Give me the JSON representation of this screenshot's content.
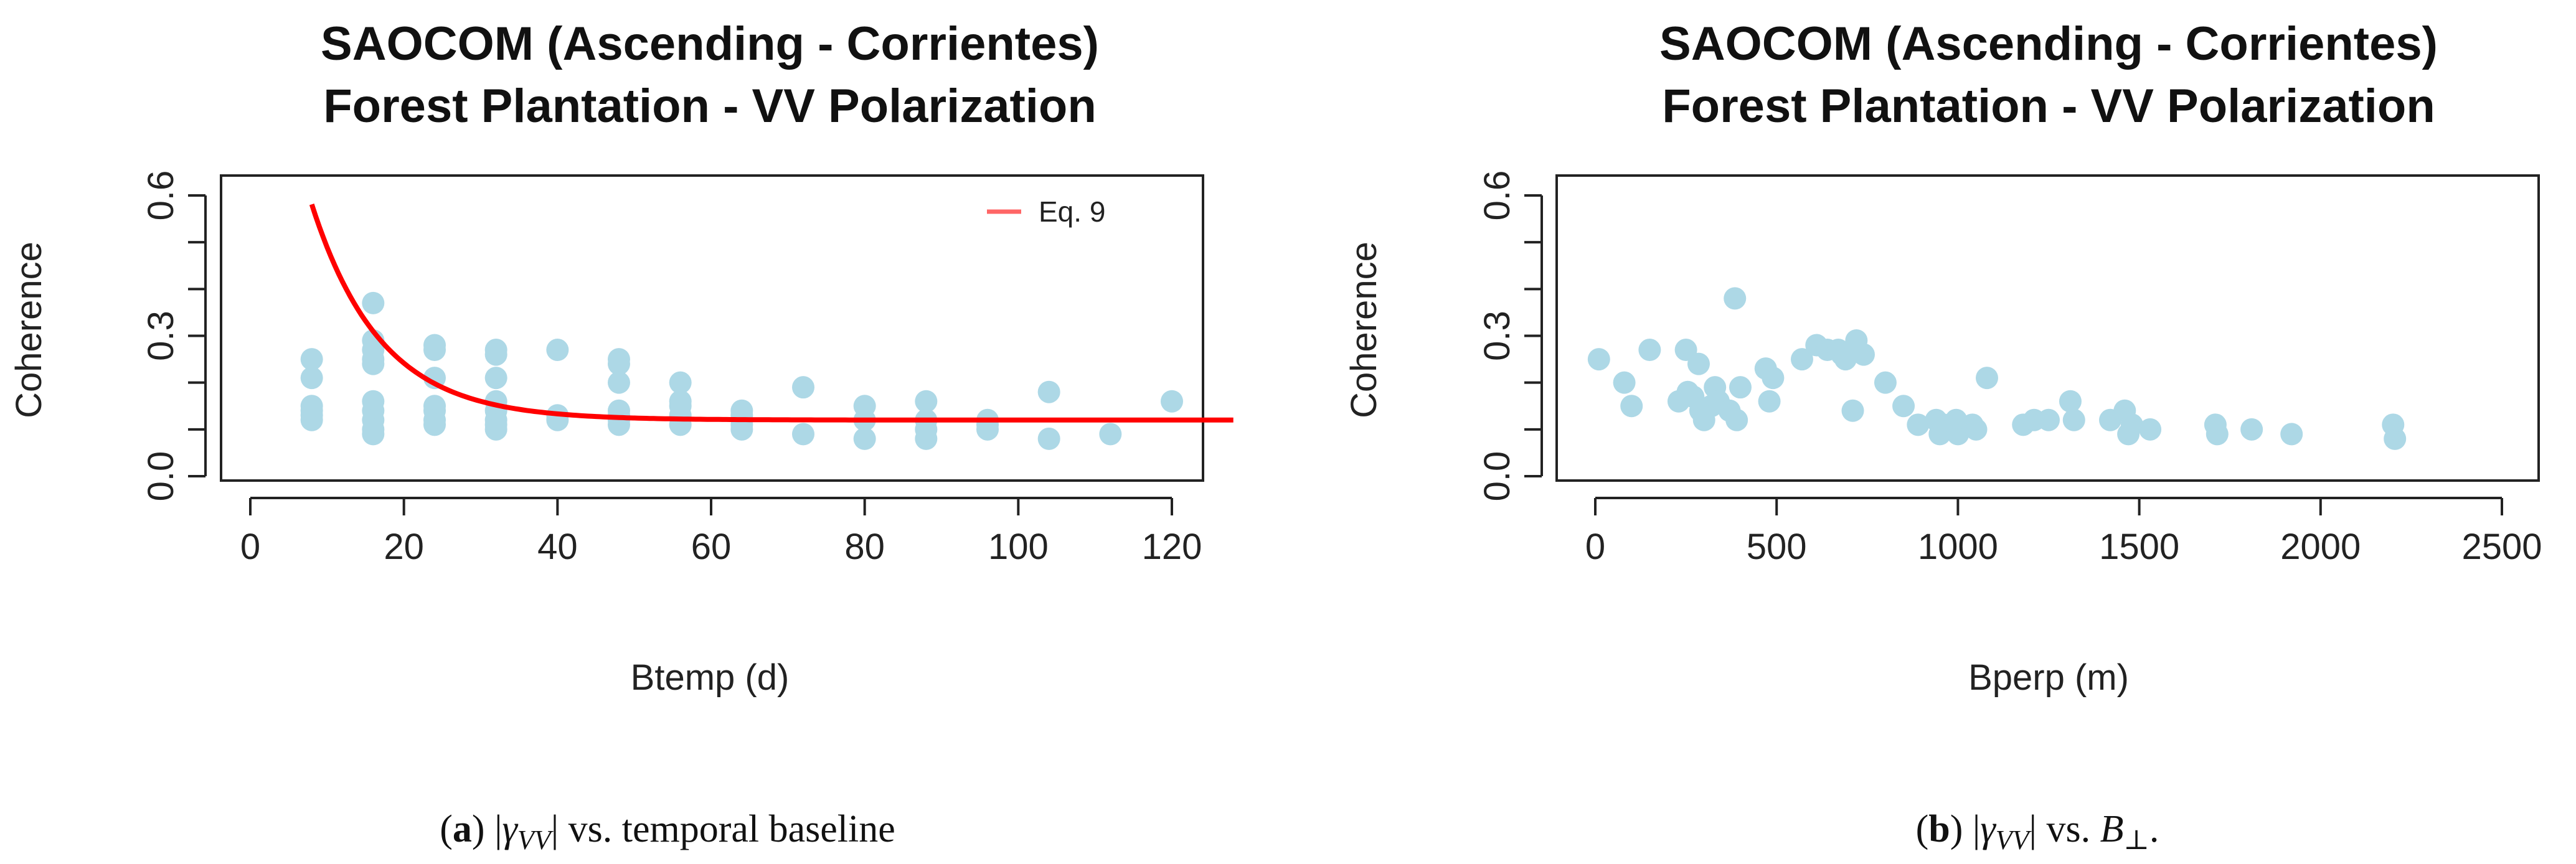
{
  "chart_data": [
    {
      "type": "scatter",
      "id": "a",
      "title": "SAOCOM (Ascending - Corrientes)",
      "subtitle": "Forest Plantation - VV Polarization",
      "xlabel": "Btemp (d)",
      "ylabel": "Coherence",
      "xlim": [
        0,
        128
      ],
      "ylim": [
        0,
        0.6
      ],
      "xticks": [
        0,
        20,
        40,
        60,
        80,
        100,
        120
      ],
      "yticks": [
        0.0,
        0.3,
        0.6
      ],
      "ytick_labels": [
        "0.0",
        "0.3",
        "0.6"
      ],
      "point_color": "#add8e6",
      "line_color": "#ff0000",
      "legend": {
        "label": "Eq. 9",
        "position": "top-right"
      },
      "curve": {
        "name": "Eq. 9",
        "x_start": 8,
        "x_end": 128,
        "gamma_inf": 0.12,
        "amplitude": 0.4611,
        "tau": 9.0,
        "x0": 8
      },
      "points": [
        [
          8,
          0.25
        ],
        [
          8,
          0.21
        ],
        [
          8,
          0.15
        ],
        [
          8,
          0.14
        ],
        [
          8,
          0.13
        ],
        [
          8,
          0.12
        ],
        [
          16,
          0.37
        ],
        [
          16,
          0.29
        ],
        [
          16,
          0.27
        ],
        [
          16,
          0.25
        ],
        [
          16,
          0.24
        ],
        [
          16,
          0.16
        ],
        [
          16,
          0.14
        ],
        [
          16,
          0.12
        ],
        [
          16,
          0.1
        ],
        [
          16,
          0.09
        ],
        [
          24,
          0.28
        ],
        [
          24,
          0.27
        ],
        [
          24,
          0.21
        ],
        [
          24,
          0.15
        ],
        [
          24,
          0.14
        ],
        [
          24,
          0.12
        ],
        [
          24,
          0.11
        ],
        [
          32,
          0.27
        ],
        [
          32,
          0.26
        ],
        [
          32,
          0.21
        ],
        [
          32,
          0.16
        ],
        [
          32,
          0.14
        ],
        [
          32,
          0.12
        ],
        [
          32,
          0.11
        ],
        [
          32,
          0.1
        ],
        [
          40,
          0.27
        ],
        [
          40,
          0.13
        ],
        [
          40,
          0.12
        ],
        [
          48,
          0.25
        ],
        [
          48,
          0.24
        ],
        [
          48,
          0.2
        ],
        [
          48,
          0.14
        ],
        [
          48,
          0.13
        ],
        [
          48,
          0.12
        ],
        [
          48,
          0.11
        ],
        [
          56,
          0.2
        ],
        [
          56,
          0.16
        ],
        [
          56,
          0.15
        ],
        [
          56,
          0.13
        ],
        [
          56,
          0.11
        ],
        [
          64,
          0.14
        ],
        [
          64,
          0.13
        ],
        [
          64,
          0.11
        ],
        [
          64,
          0.1
        ],
        [
          72,
          0.19
        ],
        [
          72,
          0.09
        ],
        [
          80,
          0.15
        ],
        [
          80,
          0.12
        ],
        [
          80,
          0.08
        ],
        [
          88,
          0.16
        ],
        [
          88,
          0.12
        ],
        [
          88,
          0.1
        ],
        [
          88,
          0.08
        ],
        [
          96,
          0.12
        ],
        [
          96,
          0.11
        ],
        [
          96,
          0.1
        ],
        [
          104,
          0.18
        ],
        [
          104,
          0.08
        ],
        [
          112,
          0.09
        ],
        [
          120,
          0.16
        ]
      ]
    },
    {
      "type": "scatter",
      "id": "b",
      "title": "SAOCOM (Ascending - Corrientes)",
      "subtitle": "Forest Plantation - VV Polarization",
      "xlabel": "Bperp (m)",
      "ylabel": "Coherence",
      "xlim": [
        -20,
        2550
      ],
      "ylim": [
        0,
        0.6
      ],
      "xticks": [
        0,
        500,
        1000,
        1500,
        2000,
        2500
      ],
      "yticks": [
        0.0,
        0.3,
        0.6
      ],
      "ytick_labels": [
        "0.0",
        "0.3",
        "0.6"
      ],
      "point_color": "#add8e6",
      "points": [
        [
          10,
          0.25
        ],
        [
          80,
          0.2
        ],
        [
          100,
          0.15
        ],
        [
          150,
          0.27
        ],
        [
          230,
          0.16
        ],
        [
          250,
          0.27
        ],
        [
          255,
          0.18
        ],
        [
          270,
          0.17
        ],
        [
          285,
          0.24
        ],
        [
          290,
          0.14
        ],
        [
          300,
          0.12
        ],
        [
          320,
          0.15
        ],
        [
          330,
          0.19
        ],
        [
          340,
          0.16
        ],
        [
          370,
          0.14
        ],
        [
          385,
          0.38
        ],
        [
          390,
          0.12
        ],
        [
          400,
          0.19
        ],
        [
          470,
          0.23
        ],
        [
          480,
          0.16
        ],
        [
          490,
          0.21
        ],
        [
          570,
          0.25
        ],
        [
          610,
          0.28
        ],
        [
          640,
          0.27
        ],
        [
          670,
          0.27
        ],
        [
          680,
          0.26
        ],
        [
          690,
          0.25
        ],
        [
          710,
          0.14
        ],
        [
          720,
          0.29
        ],
        [
          740,
          0.26
        ],
        [
          800,
          0.2
        ],
        [
          850,
          0.15
        ],
        [
          890,
          0.11
        ],
        [
          940,
          0.12
        ],
        [
          950,
          0.09
        ],
        [
          960,
          0.11
        ],
        [
          980,
          0.1
        ],
        [
          995,
          0.12
        ],
        [
          1000,
          0.09
        ],
        [
          1040,
          0.11
        ],
        [
          1050,
          0.1
        ],
        [
          1080,
          0.21
        ],
        [
          1180,
          0.11
        ],
        [
          1210,
          0.12
        ],
        [
          1250,
          0.12
        ],
        [
          1310,
          0.16
        ],
        [
          1320,
          0.12
        ],
        [
          1420,
          0.12
        ],
        [
          1460,
          0.14
        ],
        [
          1470,
          0.09
        ],
        [
          1480,
          0.11
        ],
        [
          1530,
          0.1
        ],
        [
          1710,
          0.11
        ],
        [
          1715,
          0.09
        ],
        [
          1810,
          0.1
        ],
        [
          1920,
          0.09
        ],
        [
          2200,
          0.11
        ],
        [
          2205,
          0.08
        ]
      ]
    }
  ],
  "captions": {
    "a": {
      "tag": "a",
      "text": "vs. temporal baseline"
    },
    "b": {
      "tag": "b",
      "text": "vs."
    }
  }
}
